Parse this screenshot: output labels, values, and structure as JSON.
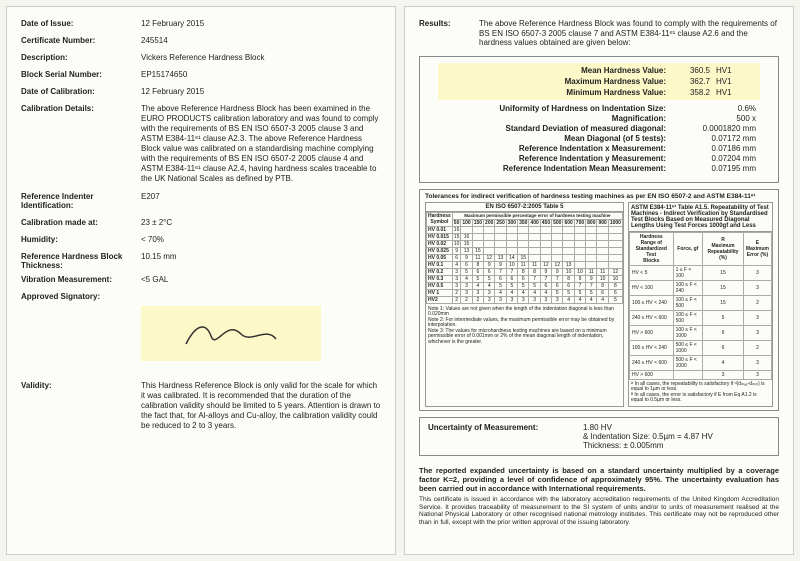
{
  "left": {
    "date_of_issue": {
      "label": "Date of Issue:",
      "value": "12 February 2015"
    },
    "cert_no": {
      "label": "Certificate Number:",
      "value": "245514"
    },
    "description": {
      "label": "Description:",
      "value": "Vickers Reference Hardness Block"
    },
    "serial": {
      "label": "Block Serial Number:",
      "value": "EP15174650"
    },
    "date_calib": {
      "label": "Date of Calibration:",
      "value": "12 February 2015"
    },
    "calib_details": {
      "label": "Calibration Details:",
      "value": "The above Reference Hardness Block has been examined in the EURO PRODUCTS calibration laboratory and was found to comply with the requirements of BS EN ISO 6507-3 2005 clause 3 and ASTM E384-11ᵉ¹ clause A2.3. The above Reference Hardness Block value was calibrated on a standardising machine complying with the requirements of BS EN ISO 6507-2 2005 clause 4 and ASTM E384-11ᵉ¹ clause A2.4, having hardness scales traceable to the UK National Scales as defined by PTB."
    },
    "indenter": {
      "label": "Reference Indenter Identification:",
      "value": "E207"
    },
    "calib_at": {
      "label": "Calibration made at:",
      "value": "23 ± 2°C"
    },
    "humidity": {
      "label": "Humidity:",
      "value": "< 70%"
    },
    "thickness": {
      "label": "Reference Hardness Block Thickness:",
      "value": "10.15 mm"
    },
    "vibration": {
      "label": "Vibration Measurement:",
      "value": "<5 GAL"
    },
    "signatory": {
      "label": "Approved Signatory:"
    },
    "validity": {
      "label": "Validity:",
      "value": "This Hardness Reference Block is only valid for the scale for which it was calibrated. It is recommended that the duration of the calibration validity should be limited to 5 years. Attention is drawn to the fact that, for Al-alloys and Cu-alloy, the calibration validity could be reduced to 2 to 3 years."
    }
  },
  "right": {
    "results": {
      "label": "Results:",
      "value": "The above Reference Hardness Block was found to comply with the requirements of BS EN ISO 6507-3 2005 clause 7 and ASTM E384-11ᵉ¹ clause A2.6 and the hardness values obtained are given below:"
    },
    "highlights": [
      {
        "k": "Mean Hardness Value:",
        "v": "360.5",
        "u": "HV1"
      },
      {
        "k": "Maximum Hardness Value:",
        "v": "362.7",
        "u": "HV1"
      },
      {
        "k": "Minimum Hardness Value:",
        "v": "358.2",
        "u": "HV1"
      }
    ],
    "meas": [
      {
        "k": "Uniformity of Hardness on Indentation Size:",
        "v": "0.6%"
      },
      {
        "k": "Magnification:",
        "v": "500 x"
      },
      {
        "k": "Standard Deviation of measured diagonal:",
        "v": "0.0001820 mm"
      },
      {
        "k": "Mean Diagonal (of 5 tests):",
        "v": "0.07172 mm"
      },
      {
        "k": "Reference Indentation x Measurement:",
        "v": "0.07186 mm"
      },
      {
        "k": "Reference Indentation y Measurement:",
        "v": "0.07204 mm"
      },
      {
        "k": "Reference Indentation Mean Measurement:",
        "v": "0.07195 mm"
      }
    ],
    "tolerance_hdr": "Tolerances for indirect verification of hardness testing machines as per EN ISO 6507-2 and ASTM E384-11ᵉ¹",
    "iso_title": "EN ISO 6507-2:2005 Table 5",
    "astm_title": "ASTM E384-11ᵉ¹ Table A1.5. Repeatability of Test Machines - Indirect Verification by Standardised Test Blocks Based on Measured Diagonal Lengths Using Test Forces 1000gf and Less",
    "iso_rows": [
      "HV 0.01",
      "HV 0.015",
      "HV 0.02",
      "HV 0.025",
      "HV 0.05",
      "HV 0.1",
      "HV 0.2",
      "HV 0.3",
      "HV 0.5",
      "HV 1",
      "HV2"
    ],
    "iso_cols": [
      "50",
      "100",
      "150",
      "200",
      "250",
      "300",
      "350",
      "400",
      "450",
      "500",
      "600",
      "700",
      "800",
      "900",
      "1000"
    ],
    "astm_rows": [
      {
        "r": "HV < 5",
        "f": "1 ≤ F < 100",
        "r1": "15",
        "r2": "3"
      },
      {
        "r": "HV < 100",
        "f": "100 ≤ F < 240",
        "r1": "15",
        "r2": "3"
      },
      {
        "r": "100 ≤ HV < 240",
        "f": "100 ≤ F < 500",
        "r1": "15",
        "r2": "2"
      },
      {
        "r": "240 ≤ HV < 600",
        "f": "100 ≤ F < 500",
        "r1": "5",
        "r2": "3"
      },
      {
        "r": "HV > 600",
        "f": "100 ≤ F < 1000",
        "r1": "6",
        "r2": "3"
      },
      {
        "r": "100 ≤ HV < 240",
        "f": "500 ≤ F < 1000",
        "r1": "6",
        "r2": "2"
      },
      {
        "r": "240 ≤ HV < 600",
        "f": "500 ≤ F < 1000",
        "r1": "4",
        "r2": "3"
      },
      {
        "r": "HV > 600",
        "f": "",
        "r1": "3",
        "r2": "3"
      }
    ],
    "astm_notes": "ᴬ In all cases, the repeatability is satisfactory if ᵈ(dₘₐₓ-dₘᵢₙ) is equal to 1µm or less.\nᴮ In all cases, the error is satisfactory if E from Eq A1.2 is equal to 0.5µm or less.",
    "iso_notes": "Note 1: Values are not given when the length of the indentation diagonal is less than 0.020mm\nNote 2: For intermediate values, the maximum permissible error may be obtained by interpolation.\nNote 3: The values for microhardness testing machines are based on a minimum permissible error of 0.001mm or 2% of the mean diagonal length of indentation, whichever is the greater.",
    "uncert": {
      "label": "Uncertainty of Measurement:",
      "l1": "1.80 HV",
      "l2": "& Indentation Size: 0.5µm = 4.87 HV",
      "l3": "Thickness: ± 0.005mm"
    },
    "footer1": "The reported expanded uncertainty is based on a standard uncertainty multiplied by a coverage factor K=2, providing a level of confidence of approximately 95%. The uncertainty evaluation has been carried out in accordance with International requirements.",
    "footer2": "This certificate is issued in accordance with the laboratory accreditation requirements of the United Kingdom Accreditation Service. It provides traceability of measurement to the SI system of units and/or to units of measurement realised at the National Physical Laboratory or other recognised national metrology institutes. This certificate may not be reproduced other than in full, except with the prior written approval of the issuing laboratory."
  },
  "colors": {
    "highlight": "#fdf8c8",
    "page_bg": "#fcfcf8",
    "border": "#888888"
  }
}
